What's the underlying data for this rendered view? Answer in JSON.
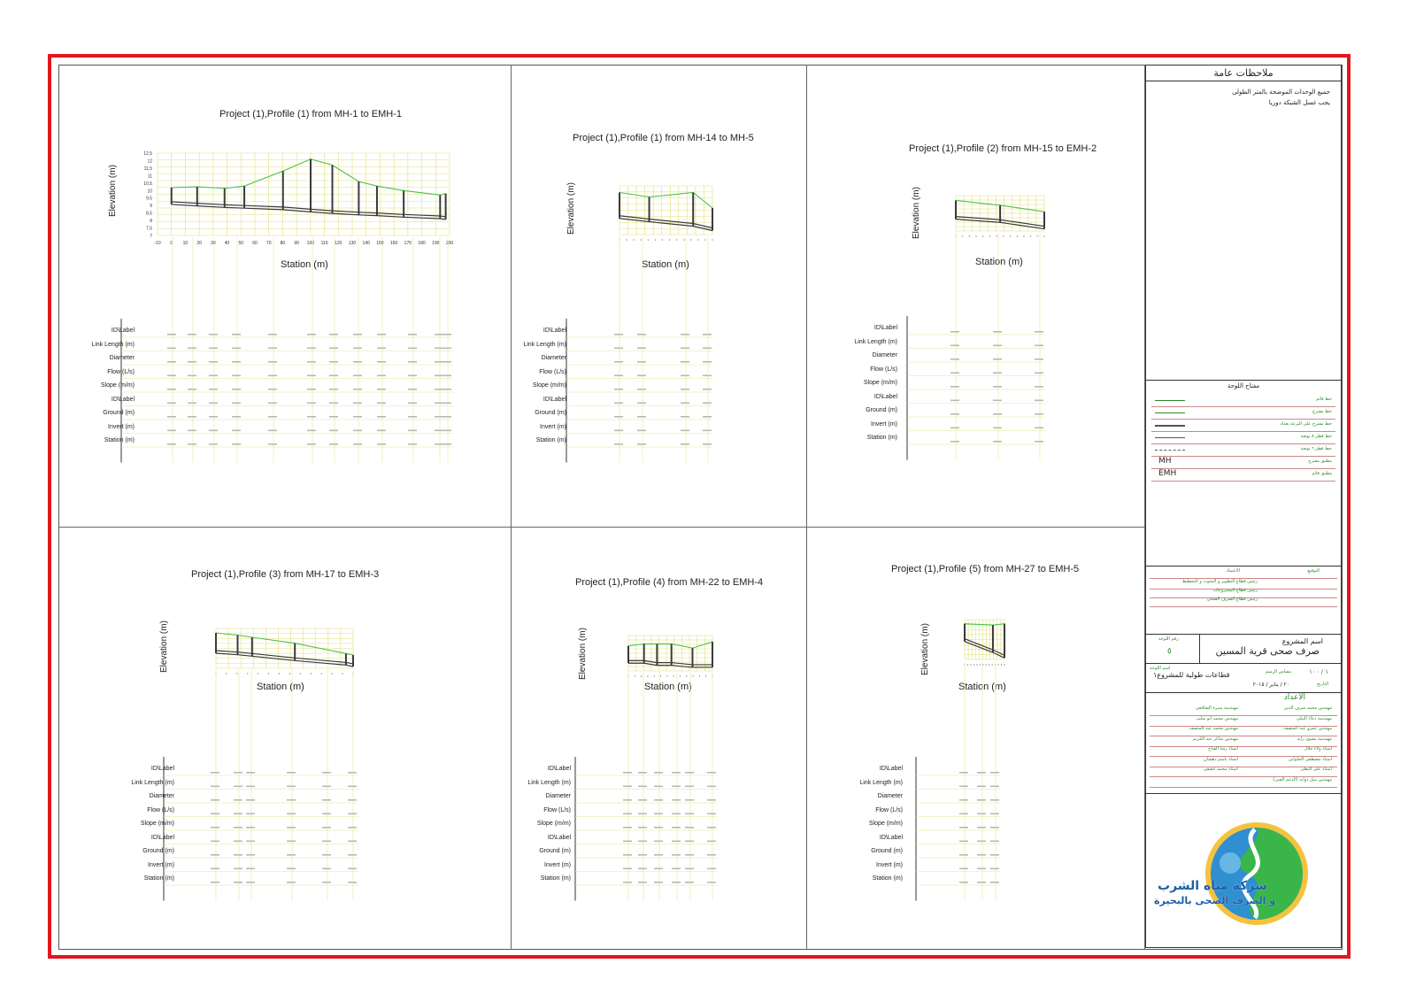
{
  "row_labels": [
    "ID\\Label",
    "Link Length (m)",
    "Diameter",
    "Flow (L/s)",
    "Slope (m/m)",
    "ID\\Label",
    "Ground (m)",
    "Invert (m)",
    "Station (m)"
  ],
  "axis_labels": {
    "y": "Elevation (m)",
    "x": "Station (m)"
  },
  "colors": {
    "frame": "#e3161b",
    "ground": "#4cc24c",
    "pipe": "#3a3a3a",
    "grid": "#e0e07a",
    "tb_text": "#2a8a2a"
  },
  "panels": [
    {
      "title": "Project (1),Profile (1) from MH-1 to EMH-1",
      "chart_data": {
        "type": "line",
        "title": "Project (1),Profile (1) from MH-1 to EMH-1",
        "xlabel": "Station (m)",
        "ylabel": "Elevation (m)",
        "xlim": [
          -10,
          200
        ],
        "ylim": [
          7,
          12.5
        ],
        "x_ticks": [
          "-10",
          "0",
          "10",
          "20",
          "30",
          "40",
          "50",
          "60",
          "70",
          "80",
          "90",
          "100",
          "110",
          "120",
          "130",
          "140",
          "150",
          "160",
          "170",
          "180",
          "190",
          "200"
        ],
        "y_ticks": [
          "7",
          "7,5",
          "8",
          "8,5",
          "9",
          "9,5",
          "10",
          "10,5",
          "11",
          "11,5",
          "12",
          "12,5"
        ],
        "series": [
          {
            "name": "",
            "x": [
              0,
              18.5,
              38.2,
              52.4,
              80.2,
              100.1,
              115.7,
              134.7,
              147.8,
              167,
              193.2,
              197.2
            ],
            "values": [
              10.2,
              10.25,
              10.15,
              10.3,
              11.3,
              12.1,
              11.7,
              10.6,
              10.3,
              10.0,
              9.7,
              9.8
            ]
          },
          {
            "name": "",
            "x": [
              0,
              18.5,
              38.2,
              52.4,
              80.2,
              100.1,
              115.7,
              134.7,
              147.8,
              167,
              193.2,
              197.2
            ],
            "values": [
              9.25,
              9.15,
              9.05,
              9.0,
              8.9,
              8.75,
              8.65,
              8.55,
              8.5,
              8.4,
              8.3,
              8.25
            ]
          }
        ]
      }
    },
    {
      "title": "Project (1),Profile (1) from MH-14 to MH-5",
      "chart_data": {
        "type": "line",
        "title": "Project (1),Profile (1) from MH-14 to MH-5",
        "xlabel": "Station (m)",
        "ylabel": "Elevation (m)",
        "series": [
          {
            "name": "",
            "x": [
              0,
              17.1,
              42.4,
              53.5
            ],
            "values": [
              10.4,
              10.2,
              10.4,
              9.7
            ]
          },
          {
            "name": "",
            "x": [
              0,
              17.1,
              42.4,
              53.5
            ],
            "values": [
              9.35,
              9.2,
              9.0,
              8.8
            ]
          }
        ]
      }
    },
    {
      "title": "Project (1),Profile (2) from MH-15 to EMH-2",
      "chart_data": {
        "type": "line",
        "title": "Project (1),Profile (2) from MH-15 to EMH-2",
        "xlabel": "Station (m)",
        "ylabel": "Elevation (m)",
        "series": [
          {
            "name": "",
            "x": [
              0,
              25.8,
              51.5
            ],
            "values": [
              10.6,
              10.3,
              9.9
            ]
          },
          {
            "name": "",
            "x": [
              0,
              25.8,
              51.5
            ],
            "values": [
              9.6,
              9.4,
              9.0
            ]
          }
        ]
      }
    },
    {
      "title": "Project (1),Profile (3) from MH-17 to EMH-3",
      "chart_data": {
        "type": "line",
        "title": "Project (1),Profile (3) from MH-17 to EMH-3",
        "xlabel": "Station (m)",
        "ylabel": "Elevation (m)",
        "series": [
          {
            "name": "",
            "x": [
              0,
              15.2,
              25.3,
              55.3,
              91.1,
              96.1
            ],
            "values": [
              11.1,
              10.95,
              10.8,
              10.4,
              9.7,
              9.6
            ]
          },
          {
            "name": "",
            "x": [
              0,
              15.2,
              25.3,
              55.3,
              91.1,
              96.1
            ],
            "values": [
              9.9,
              9.8,
              9.7,
              9.4,
              9.1,
              9.0
            ]
          }
        ]
      }
    },
    {
      "title": "Project (1),Profile (4) from MH-22 to EMH-4",
      "chart_data": {
        "type": "line",
        "title": "Project (1),Profile (4) from MH-22 to EMH-4",
        "xlabel": "Station (m)",
        "ylabel": "Elevation (m)",
        "series": [
          {
            "name": "",
            "x": [
              0,
              11.3,
              20.7,
              31.1,
              46.3,
              60.7
            ],
            "values": [
              9.4,
              9.5,
              9.5,
              9.5,
              9.3,
              9.6
            ]
          },
          {
            "name": "",
            "x": [
              0,
              11.3,
              20.7,
              31.1,
              46.3,
              60.7
            ],
            "values": [
              8.7,
              8.7,
              8.6,
              8.6,
              8.5,
              8.5
            ]
          }
        ]
      }
    },
    {
      "title": "Project (1),Profile (5) from MH-27 to EMH-5",
      "chart_data": {
        "type": "line",
        "title": "Project (1),Profile (5) from MH-27 to EMH-5",
        "xlabel": "Station (m)",
        "ylabel": "Elevation (m)",
        "series": [
          {
            "name": "",
            "x": [
              0,
              17.1,
              24.1
            ],
            "values": [
              10.9,
              10.8,
              10.9
            ]
          },
          {
            "name": "",
            "x": [
              0,
              17.1,
              24.1
            ],
            "values": [
              9.8,
              9.0,
              8.6
            ]
          }
        ]
      }
    }
  ],
  "title_block": {
    "notes_title": "ملاحظات عامة",
    "notes": [
      "جميع الوحدات الموضحة بالمتر الطولى",
      "يجب غسل الشبكة دوريا"
    ],
    "legend_title": "مفتاح اللوحة",
    "legend_items": [
      "خط قائم",
      "خط مقترح",
      "خط مقترح على الترعة بعداد",
      "خط قطر ٨ بوصة",
      "خط قطر ٦ بوصة",
      "مطبق مقترح",
      "مطبق قائم"
    ],
    "legend_codes": [
      "MH",
      "EMH"
    ],
    "approval_head_right": "التوقيع",
    "approval_head_left": "الاعتماد",
    "approvals": [
      "رئيس قطاع التطوير و البحوث و التخطيط",
      "رئيس قطاع المشروعات",
      "رئيس قطاع الصرف الصحى"
    ],
    "project_label": "اسم المشروع",
    "project_name": "صرف صحى قرية المسين",
    "sheet_no_label": "رقم اللوحة",
    "sheet_no": "٥",
    "sheet_name_label": "اسم اللوحة",
    "sheet_name": "قطاعات طولية للمشروع١",
    "scale_label": "مقياس الرسم",
    "scale": "١ / ١٠٠",
    "date_label": "التاريخ",
    "date": "٢٠ / يناير / ٢٠١٥",
    "prepared_label": "الاعداد",
    "staff": [
      [
        "مهندس محمد شرف الدين",
        "مهندسة منيرة الشافعى"
      ],
      [
        "مهندسة دعاء البيلى",
        "مهندس محمد ابو شلب"
      ],
      [
        "مهندس عمرو عبد المنصف",
        "مهندس محمد عبد المنصف"
      ],
      [
        "مهندسة نشوى زايد",
        "مهندس شاكر عبد الكريم"
      ],
      [
        "استاذ ولاء جلال",
        "استاذ رشا الفتاح"
      ],
      [
        "استاذ مصطفى الحلواني",
        "استاذ باسم دهشان"
      ],
      [
        "استاذ على البطى",
        "استاذ محمد عقيقى"
      ],
      [
        "مهندس نبيل دوابة (الدعم الفنى)",
        ""
      ]
    ],
    "company_line1": "شركة مياه الشرب",
    "company_line2": "و الصرف الصحى بالبحيرة"
  }
}
